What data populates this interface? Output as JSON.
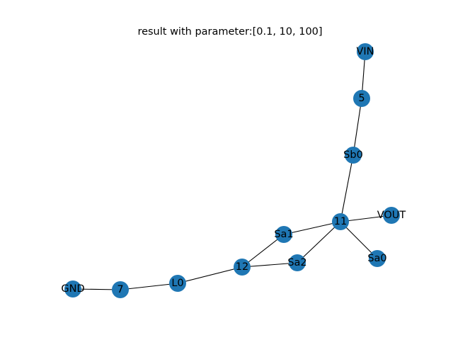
{
  "figure": {
    "title": "result with parameter:[0.1, 10, 100]"
  },
  "graph": {
    "node_color": "#1f77b4",
    "edge_color": "#000000",
    "nodes": [
      {
        "id": "VIN",
        "label": "VIN"
      },
      {
        "id": "5",
        "label": "5"
      },
      {
        "id": "Sb0",
        "label": "Sb0"
      },
      {
        "id": "11",
        "label": "11"
      },
      {
        "id": "VOUT",
        "label": "VOUT"
      },
      {
        "id": "Sa1",
        "label": "Sa1"
      },
      {
        "id": "Sa0",
        "label": "Sa0"
      },
      {
        "id": "Sa2",
        "label": "Sa2"
      },
      {
        "id": "12",
        "label": "12"
      },
      {
        "id": "L0",
        "label": "L0"
      },
      {
        "id": "7",
        "label": "7"
      },
      {
        "id": "GND",
        "label": "GND"
      }
    ],
    "edges": [
      [
        "VIN",
        "5"
      ],
      [
        "5",
        "Sb0"
      ],
      [
        "Sb0",
        "11"
      ],
      [
        "11",
        "VOUT"
      ],
      [
        "11",
        "Sa1"
      ],
      [
        "11",
        "Sa0"
      ],
      [
        "11",
        "Sa2"
      ],
      [
        "Sa1",
        "12"
      ],
      [
        "Sa2",
        "12"
      ],
      [
        "12",
        "L0"
      ],
      [
        "L0",
        "7"
      ],
      [
        "7",
        "GND"
      ]
    ]
  }
}
